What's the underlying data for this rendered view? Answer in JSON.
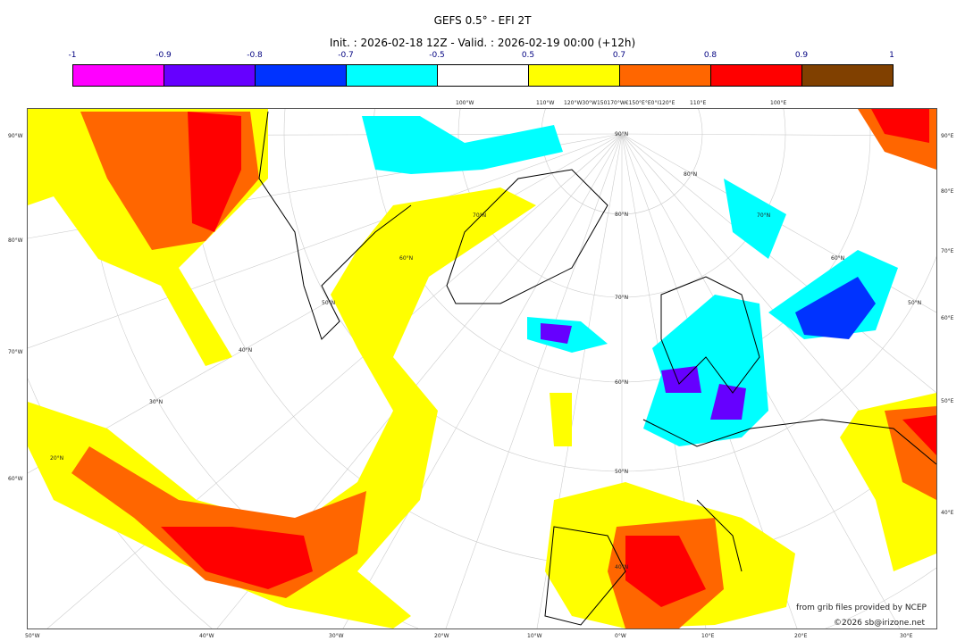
{
  "title": "GEFS 0.5° - EFI 2T",
  "subtitle": "Init. : 2026-02-18 12Z - Valid. : 2026-02-19 00:00 (+12h)",
  "colorbar": {
    "ticks": [
      "-1",
      "-0.9",
      "-0.8",
      "-0.7",
      "-0.5",
      "0.5",
      "0.7",
      "0.8",
      "0.9",
      "1"
    ],
    "colors": [
      "#ff00ff",
      "#6600ff",
      "#0033ff",
      "#00ffff",
      "#ffffff",
      "#ffff00",
      "#ff6600",
      "#ff0000",
      "#804000"
    ]
  },
  "map": {
    "left_labels": [
      "90°W",
      "80°W",
      "70°W",
      "60°W"
    ],
    "right_labels": [
      "90°E",
      "80°E",
      "70°E",
      "60°E",
      "50°E",
      "40°E"
    ],
    "bottom_labels": [
      "50°W",
      "40°W",
      "30°W",
      "20°W",
      "10°W",
      "0°W",
      "10°E",
      "20°E",
      "30°E"
    ],
    "top_labels": [
      "100°W",
      "110°W",
      "120°W30°W150170°W€150°E°E0°I120°E",
      "110°E",
      "100°E"
    ],
    "lat_labels": [
      "90°N",
      "80°N",
      "70°N",
      "60°N",
      "50°N",
      "40°N",
      "70°N",
      "60°N",
      "50°N",
      "40°N",
      "30°N",
      "20°N",
      "80°N",
      "70°N",
      "60°N",
      "50°N"
    ]
  },
  "credits": {
    "line1": "from grib files provided by NCEP",
    "line2": "©2026 sb@irizone.net"
  }
}
